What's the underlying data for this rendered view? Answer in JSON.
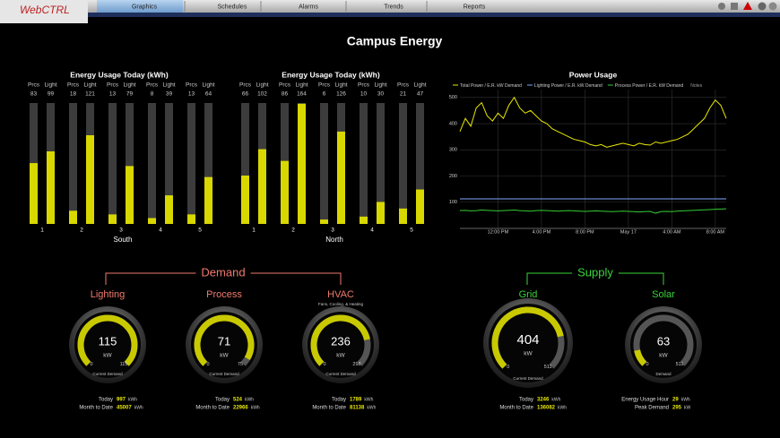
{
  "nav": {
    "logo": "WebCTRL",
    "tabs": [
      "Graphics",
      "Schedules",
      "Alarms",
      "Trends",
      "Reports"
    ]
  },
  "title": "Campus Energy",
  "chart_data": [
    {
      "type": "bar",
      "title": "Energy Usage Today  (kWh)",
      "subtitle": "South",
      "categories": [
        "1",
        "2",
        "3",
        "4",
        "5"
      ],
      "series": [
        {
          "name": "Prcs",
          "color": "#d8d800",
          "values": [
            83,
            18,
            13,
            8,
            13
          ]
        },
        {
          "name": "Light",
          "color": "#d8d800",
          "values": [
            99,
            121,
            79,
            39,
            64
          ]
        }
      ],
      "ylim": [
        0,
        165
      ]
    },
    {
      "type": "bar",
      "title": "Energy Usage Today  (kWh)",
      "subtitle": "North",
      "categories": [
        "1",
        "2",
        "3",
        "4",
        "5"
      ],
      "series": [
        {
          "name": "Prcs",
          "color": "#d8d800",
          "values": [
            66,
            86,
            6,
            10,
            21
          ]
        },
        {
          "name": "Light",
          "color": "#d8d800",
          "values": [
            102,
            164,
            126,
            30,
            47
          ]
        }
      ],
      "ylim": [
        0,
        165
      ]
    },
    {
      "type": "line",
      "title": "Power Usage",
      "notes": "Notes",
      "xlim": [
        0,
        49
      ],
      "xticks": [
        {
          "value": 7,
          "label": "12:00 PM"
        },
        {
          "value": 15,
          "label": "4:00 PM"
        },
        {
          "value": 23,
          "label": "8:00 PM"
        },
        {
          "value": 31,
          "label": "May 17"
        },
        {
          "value": 39,
          "label": "4:00 AM"
        },
        {
          "value": 47,
          "label": "8:00 AM"
        }
      ],
      "ylim": [
        0,
        530
      ],
      "yticks": [
        100,
        200,
        300,
        400,
        500
      ],
      "grid": true,
      "series": [
        {
          "name": "Total Power / E.R. kW Demand",
          "color": "#e8e800",
          "values": [
            370,
            420,
            390,
            460,
            480,
            430,
            410,
            440,
            420,
            470,
            500,
            460,
            440,
            450,
            430,
            410,
            400,
            380,
            370,
            360,
            350,
            340,
            335,
            330,
            320,
            315,
            320,
            310,
            315,
            320,
            325,
            320,
            315,
            325,
            320,
            318,
            330,
            325,
            330,
            335,
            340,
            350,
            360,
            380,
            400,
            420,
            460,
            490,
            470,
            420
          ]
        },
        {
          "name": "Lighting Power / E.R. kW Demand",
          "color": "#7fa8ff",
          "values": [
            113,
            113,
            113,
            113,
            113,
            113,
            113,
            113,
            113,
            113,
            113,
            113,
            113,
            113,
            113,
            113,
            113,
            113,
            113,
            113,
            113,
            113,
            113,
            113,
            113,
            113,
            113,
            113,
            113,
            113,
            113,
            113,
            113,
            113,
            113,
            113,
            113,
            113,
            113,
            113,
            113,
            113,
            113,
            113,
            113,
            113,
            113,
            113,
            113,
            113
          ]
        },
        {
          "name": "Process Power / E.R. kW Demand",
          "color": "#33cc33",
          "values": [
            68,
            69,
            67,
            68,
            70,
            69,
            68,
            67,
            68,
            69,
            70,
            68,
            67,
            66,
            68,
            69,
            68,
            67,
            66,
            67,
            68,
            67,
            66,
            65,
            66,
            67,
            66,
            65,
            64,
            65,
            66,
            65,
            64,
            63,
            64,
            65,
            58,
            64,
            65,
            64,
            66,
            67,
            68,
            69,
            70,
            71,
            72,
            73,
            74,
            75
          ]
        }
      ]
    }
  ],
  "demand": {
    "label": "Demand",
    "gauges": [
      {
        "name": "Lighting",
        "value": 115,
        "unit": "kW",
        "min": 0,
        "max": 115,
        "caption": "Current Demand",
        "stats": [
          {
            "label": "Today",
            "value": 997,
            "unit": "kWh"
          },
          {
            "label": "Month to Date",
            "value": 45007,
            "unit": "kWh"
          }
        ]
      },
      {
        "name": "Process",
        "value": 71,
        "unit": "kW",
        "min": 0,
        "max": 75,
        "caption": "Current Demand",
        "stats": [
          {
            "label": "Today",
            "value": 524,
            "unit": "kWh"
          },
          {
            "label": "Month to Date",
            "value": 22966,
            "unit": "kWh"
          }
        ]
      },
      {
        "name": "HVAC",
        "subtitle": "Fans, Cooling, & Heating",
        "value": 236,
        "unit": "kW",
        "min": 0,
        "max": 298,
        "caption": "Current Demand",
        "stats": [
          {
            "label": "Today",
            "value": 1789,
            "unit": "kWh"
          },
          {
            "label": "Month to Date",
            "value": 81138,
            "unit": "kWh"
          }
        ]
      }
    ]
  },
  "supply": {
    "label": "Supply",
    "gauges": [
      {
        "name": "Grid",
        "value": 404,
        "unit": "kW",
        "min": 0,
        "max": 511,
        "caption": "Current Demand",
        "stats": [
          {
            "label": "Today",
            "value": 3246,
            "unit": "kWh"
          },
          {
            "label": "Month to Date",
            "value": 136082,
            "unit": "kWh"
          }
        ]
      },
      {
        "name": "Solar",
        "value": 63,
        "unit": "kW",
        "min": 0,
        "max": 511,
        "caption": "Demand",
        "stats": [
          {
            "label": "Energy Usage Hour",
            "value": 29,
            "unit": "kWh"
          },
          {
            "label": "Peak Demand",
            "value": 295,
            "unit": "kW"
          }
        ]
      }
    ]
  }
}
